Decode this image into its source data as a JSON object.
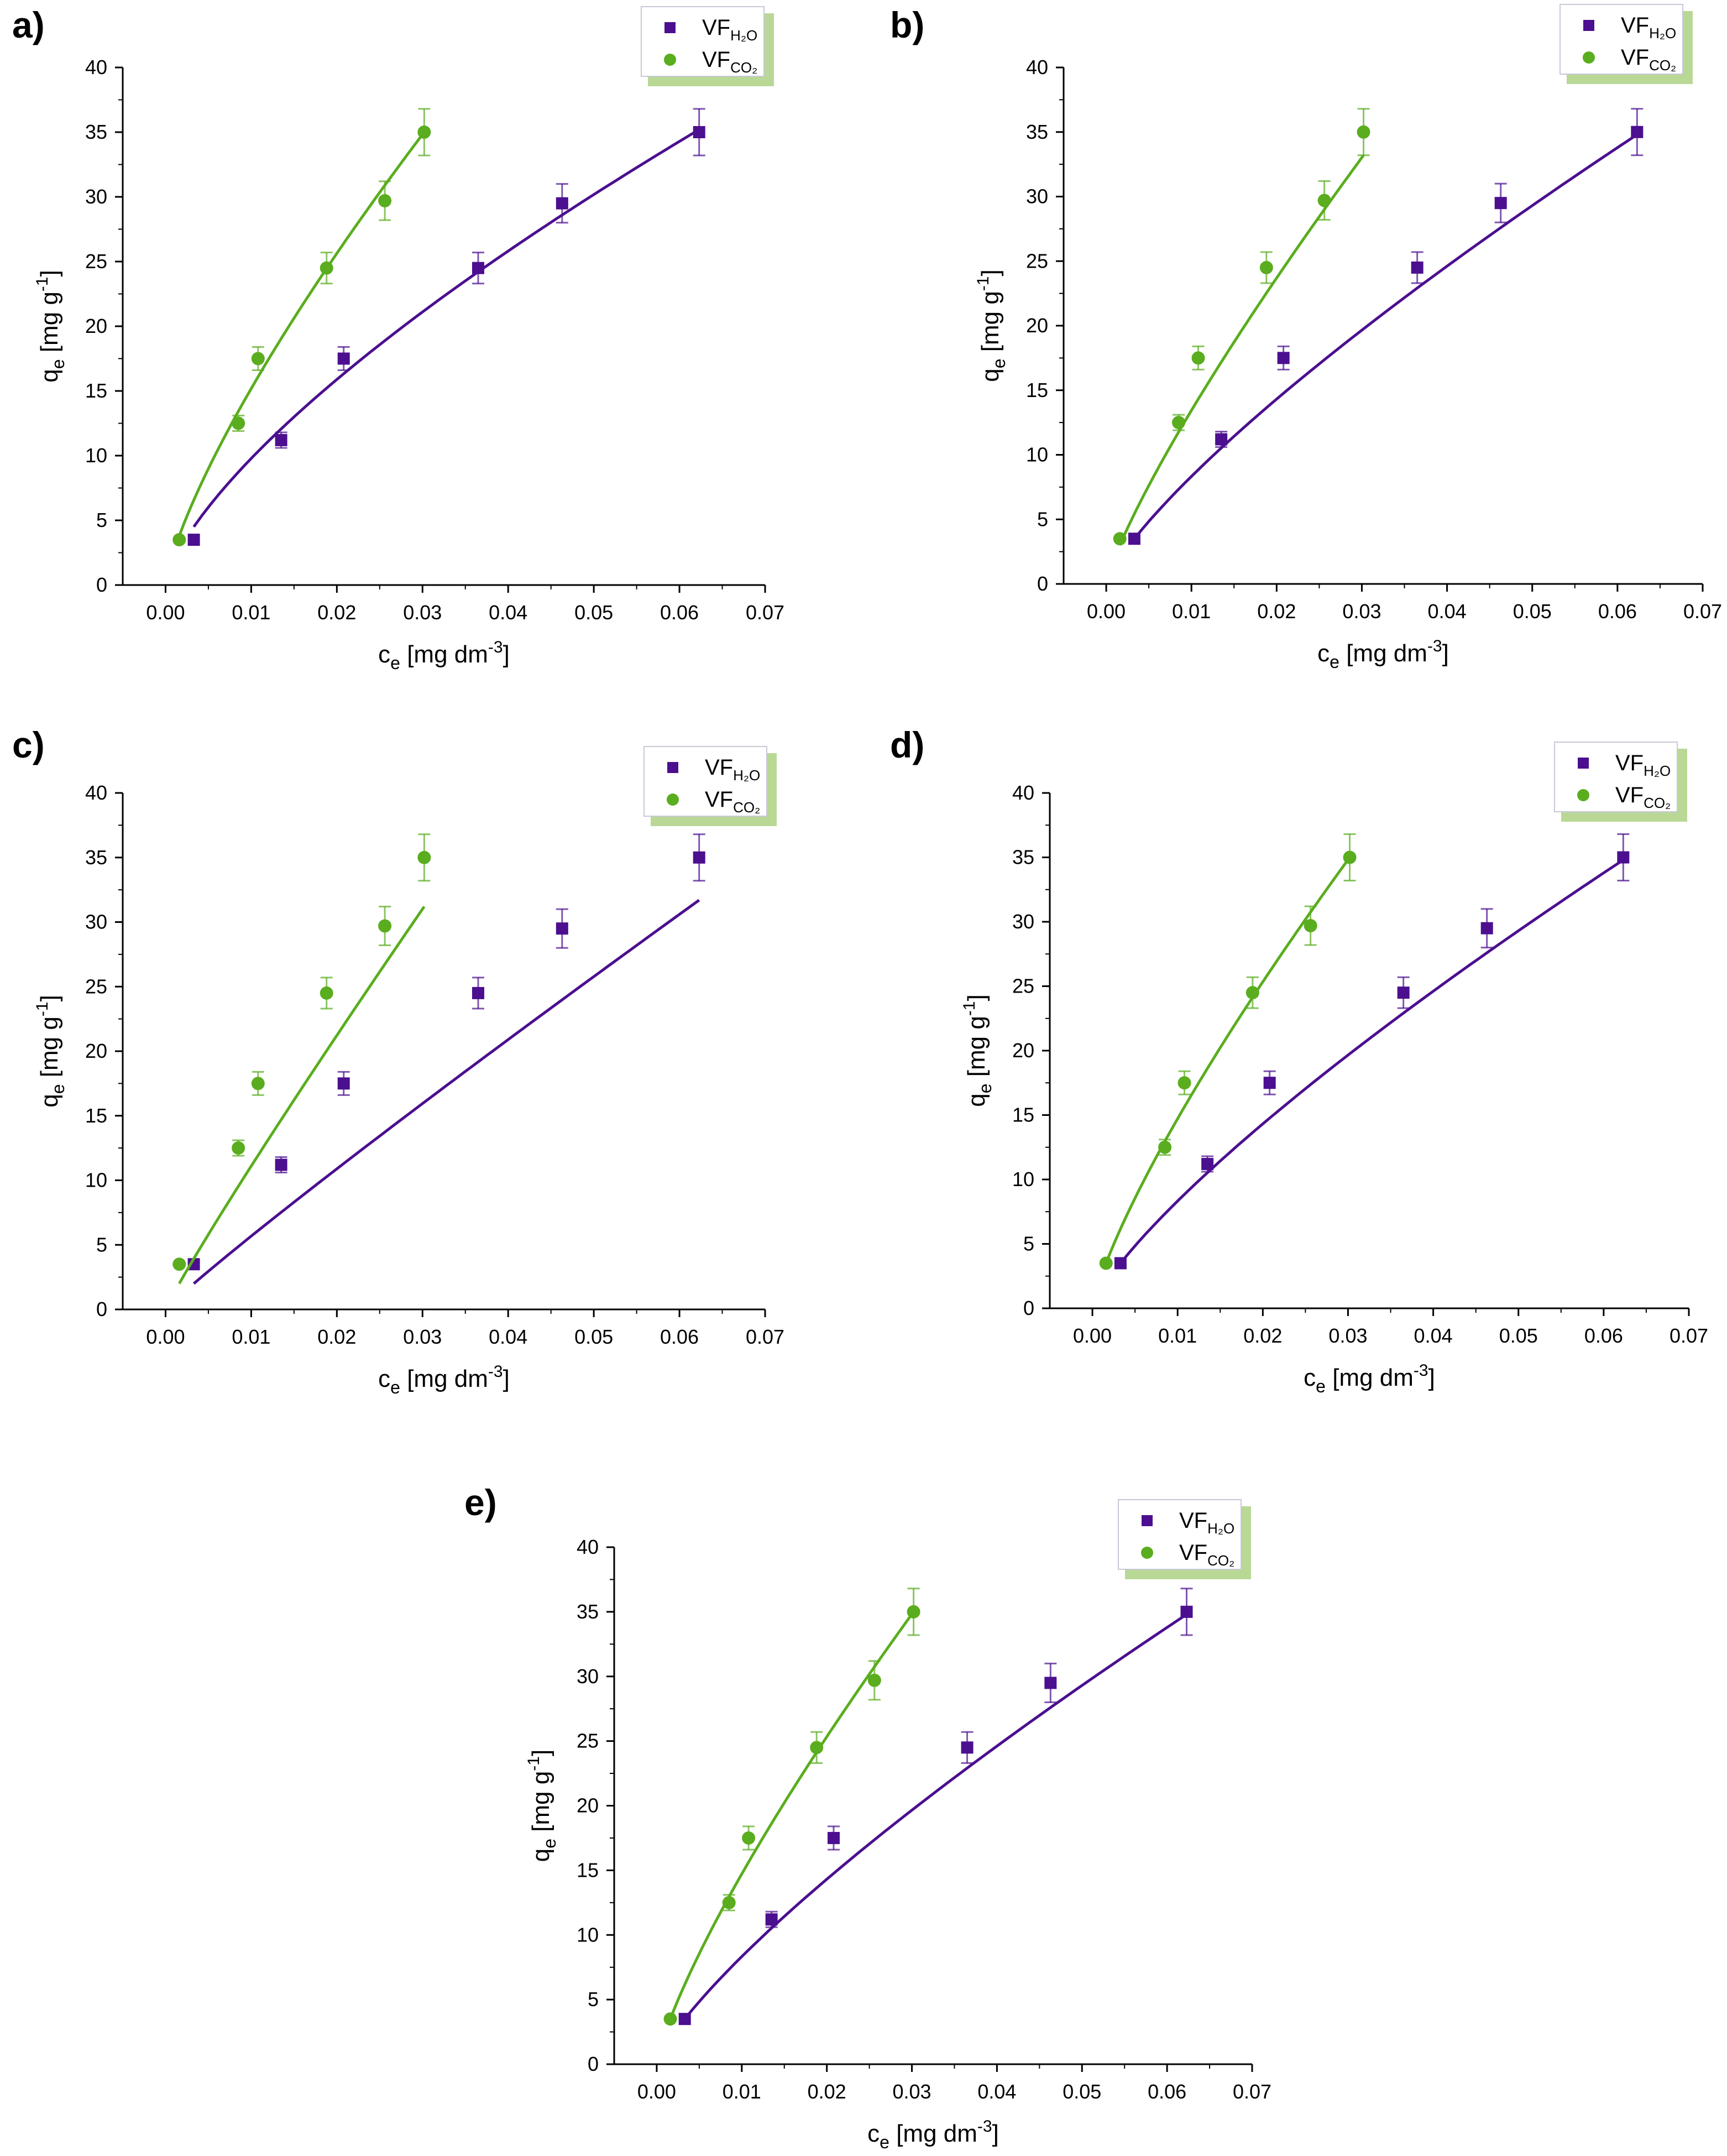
{
  "chart_data": [
    {
      "panel": "a)",
      "type": "scatter",
      "xlim": [
        -0.005,
        0.07
      ],
      "ylim": [
        0,
        40
      ],
      "x_ticks": [
        "0.00",
        "0.01",
        "0.02",
        "0.03",
        "0.04",
        "0.05",
        "0.06",
        "0.07"
      ],
      "y_ticks": [
        "0",
        "5",
        "10",
        "15",
        "20",
        "25",
        "30",
        "35",
        "40"
      ],
      "xlabel": {
        "base": "c",
        "sub": "e",
        "unit": " [mg dm",
        "sup": "-3",
        "close": "]"
      },
      "ylabel": {
        "base": "q",
        "sub": "e",
        "unit": " [mg g",
        "sup": "-1",
        "close": "]"
      },
      "legend": "top-right",
      "series": [
        {
          "name": "VF",
          "name_sub": "H₂O",
          "color": "#4b0f8f",
          "marker": "square",
          "x": [
            0.0033,
            0.0135,
            0.0208,
            0.0365,
            0.0463,
            0.0623
          ],
          "y": [
            3.5,
            11.2,
            17.5,
            24.5,
            29.5,
            35.0
          ],
          "err": [
            0,
            0.6,
            0.9,
            1.2,
            1.5,
            1.8
          ],
          "fit": {
            "x": [
              0.0033,
              0.0623
            ],
            "y": [
              4.5,
              35.2
            ]
          }
        },
        {
          "name": "VF",
          "name_sub": "CO₂",
          "color": "#5aad1e",
          "marker": "circle",
          "x": [
            0.0016,
            0.0085,
            0.0108,
            0.0188,
            0.0256,
            0.0302
          ],
          "y": [
            3.5,
            12.5,
            17.5,
            24.5,
            29.7,
            35.0
          ],
          "err": [
            0,
            0.6,
            0.9,
            1.2,
            1.5,
            1.8
          ],
          "fit": {
            "x": [
              0.0016,
              0.0302
            ],
            "y": [
              3.8,
              35.0
            ]
          }
        }
      ]
    },
    {
      "panel": "b)",
      "type": "scatter",
      "xlim": [
        -0.005,
        0.07
      ],
      "ylim": [
        0,
        40
      ],
      "x_ticks": [
        "0.00",
        "0.01",
        "0.02",
        "0.03",
        "0.04",
        "0.05",
        "0.06",
        "0.07"
      ],
      "y_ticks": [
        "0",
        "5",
        "10",
        "15",
        "20",
        "25",
        "30",
        "35",
        "40"
      ],
      "xlabel": {
        "base": "c",
        "sub": "e",
        "unit": " [mg dm",
        "sup": "-3",
        "close": "]"
      },
      "ylabel": {
        "base": "q",
        "sub": "e",
        "unit": " [mg g",
        "sup": "-1",
        "close": "]"
      },
      "legend": "top-right",
      "series": [
        {
          "name": "VF",
          "name_sub": "H₂O",
          "color": "#4b0f8f",
          "marker": "square",
          "x": [
            0.0033,
            0.0135,
            0.0208,
            0.0365,
            0.0463,
            0.0623
          ],
          "y": [
            3.5,
            11.2,
            17.5,
            24.5,
            29.5,
            35.0
          ],
          "err": [
            0,
            0.6,
            0.9,
            1.2,
            1.5,
            1.8
          ],
          "fit": {
            "x": [
              0.0033,
              0.0623
            ],
            "y": [
              3.5,
              34.8
            ]
          }
        },
        {
          "name": "VF",
          "name_sub": "CO₂",
          "color": "#5aad1e",
          "marker": "circle",
          "x": [
            0.0016,
            0.0085,
            0.0108,
            0.0188,
            0.0256,
            0.0302
          ],
          "y": [
            3.5,
            12.5,
            17.5,
            24.5,
            29.7,
            35.0
          ],
          "err": [
            0,
            0.6,
            0.9,
            1.2,
            1.5,
            1.8
          ],
          "fit": {
            "x": [
              0.0016,
              0.0302
            ],
            "y": [
              3.0,
              33.2
            ]
          }
        }
      ]
    },
    {
      "panel": "c)",
      "type": "scatter",
      "xlim": [
        -0.005,
        0.07
      ],
      "ylim": [
        0,
        40
      ],
      "x_ticks": [
        "0.00",
        "0.01",
        "0.02",
        "0.03",
        "0.04",
        "0.05",
        "0.06",
        "0.07"
      ],
      "y_ticks": [
        "0",
        "5",
        "10",
        "15",
        "20",
        "25",
        "30",
        "35",
        "40"
      ],
      "xlabel": {
        "base": "c",
        "sub": "e",
        "unit": " [mg dm",
        "sup": "-3",
        "close": "]"
      },
      "ylabel": {
        "base": "q",
        "sub": "e",
        "unit": " [mg g",
        "sup": "-1",
        "close": "]"
      },
      "legend": "top-right",
      "series": [
        {
          "name": "VF",
          "name_sub": "H₂O",
          "color": "#4b0f8f",
          "marker": "square",
          "x": [
            0.0033,
            0.0135,
            0.0208,
            0.0365,
            0.0463,
            0.0623
          ],
          "y": [
            3.5,
            11.2,
            17.5,
            24.5,
            29.5,
            35.0
          ],
          "err": [
            0,
            0.6,
            0.9,
            1.2,
            1.5,
            1.8
          ],
          "fit": {
            "x": [
              0.0033,
              0.0623
            ],
            "y": [
              2.0,
              31.7
            ]
          }
        },
        {
          "name": "VF",
          "name_sub": "CO₂",
          "color": "#5aad1e",
          "marker": "circle",
          "x": [
            0.0016,
            0.0085,
            0.0108,
            0.0188,
            0.0256,
            0.0302
          ],
          "y": [
            3.5,
            12.5,
            17.5,
            24.5,
            29.7,
            35.0
          ],
          "err": [
            0,
            0.6,
            0.9,
            1.2,
            1.5,
            1.8
          ],
          "fit": {
            "x": [
              0.0016,
              0.0302
            ],
            "y": [
              2.0,
              31.2
            ]
          }
        }
      ]
    },
    {
      "panel": "d)",
      "type": "scatter",
      "xlim": [
        -0.005,
        0.07
      ],
      "ylim": [
        0,
        40
      ],
      "x_ticks": [
        "0.00",
        "0.01",
        "0.02",
        "0.03",
        "0.04",
        "0.05",
        "0.06",
        "0.07"
      ],
      "y_ticks": [
        "0",
        "5",
        "10",
        "15",
        "20",
        "25",
        "30",
        "35",
        "40"
      ],
      "xlabel": {
        "base": "c",
        "sub": "e",
        "unit": " [mg dm",
        "sup": "-3",
        "close": "]"
      },
      "ylabel": {
        "base": "q",
        "sub": "e",
        "unit": " [mg g",
        "sup": "-1",
        "close": "]"
      },
      "legend": "top-right",
      "series": [
        {
          "name": "VF",
          "name_sub": "H₂O",
          "color": "#4b0f8f",
          "marker": "square",
          "x": [
            0.0033,
            0.0135,
            0.0208,
            0.0365,
            0.0463,
            0.0623
          ],
          "y": [
            3.5,
            11.2,
            17.5,
            24.5,
            29.5,
            35.0
          ],
          "err": [
            0,
            0.6,
            0.9,
            1.2,
            1.5,
            1.8
          ],
          "fit": {
            "x": [
              0.0033,
              0.0623
            ],
            "y": [
              3.5,
              34.8
            ]
          }
        },
        {
          "name": "VF",
          "name_sub": "CO₂",
          "color": "#5aad1e",
          "marker": "circle",
          "x": [
            0.0016,
            0.0085,
            0.0108,
            0.0188,
            0.0256,
            0.0302
          ],
          "y": [
            3.5,
            12.5,
            17.5,
            24.5,
            29.7,
            35.0
          ],
          "err": [
            0,
            0.6,
            0.9,
            1.2,
            1.5,
            1.8
          ],
          "fit": {
            "x": [
              0.0016,
              0.0302
            ],
            "y": [
              3.5,
              35.0
            ]
          }
        }
      ]
    },
    {
      "panel": "e)",
      "type": "scatter",
      "xlim": [
        -0.005,
        0.07
      ],
      "ylim": [
        0,
        40
      ],
      "x_ticks": [
        "0.00",
        "0.01",
        "0.02",
        "0.03",
        "0.04",
        "0.05",
        "0.06",
        "0.07"
      ],
      "y_ticks": [
        "0",
        "5",
        "10",
        "15",
        "20",
        "25",
        "30",
        "35",
        "40"
      ],
      "xlabel": {
        "base": "c",
        "sub": "e",
        "unit": " [mg dm",
        "sup": "-3",
        "close": "]"
      },
      "ylabel": {
        "base": "q",
        "sub": "e",
        "unit": " [mg g",
        "sup": "-1",
        "close": "]"
      },
      "legend": "top-right",
      "series": [
        {
          "name": "VF",
          "name_sub": "H₂O",
          "color": "#4b0f8f",
          "marker": "square",
          "x": [
            0.0033,
            0.0135,
            0.0208,
            0.0365,
            0.0463,
            0.0623
          ],
          "y": [
            3.5,
            11.2,
            17.5,
            24.5,
            29.5,
            35.0
          ],
          "err": [
            0,
            0.6,
            0.9,
            1.2,
            1.5,
            1.8
          ],
          "fit": {
            "x": [
              0.0033,
              0.0623
            ],
            "y": [
              3.5,
              34.8
            ]
          }
        },
        {
          "name": "VF",
          "name_sub": "CO₂",
          "color": "#5aad1e",
          "marker": "circle",
          "x": [
            0.0016,
            0.0085,
            0.0108,
            0.0188,
            0.0256,
            0.0302
          ],
          "y": [
            3.5,
            12.5,
            17.5,
            24.5,
            29.7,
            35.0
          ],
          "err": [
            0,
            0.6,
            0.9,
            1.2,
            1.5,
            1.8
          ],
          "fit": {
            "x": [
              0.0016,
              0.0302
            ],
            "y": [
              3.5,
              35.0
            ]
          }
        }
      ]
    }
  ]
}
